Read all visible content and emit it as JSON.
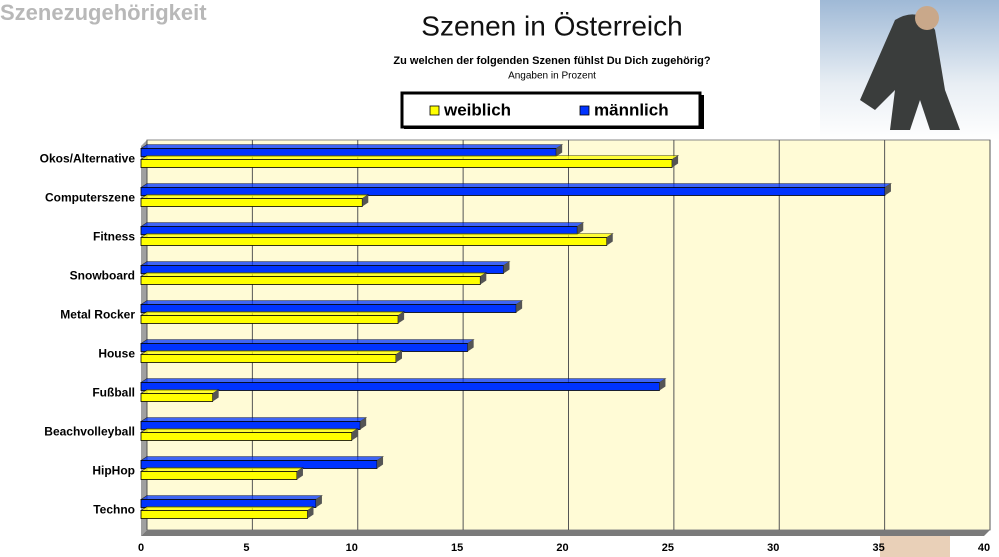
{
  "chart_data": {
    "type": "bar",
    "orientation": "horizontal",
    "section_label": "Szenezugehörigkeit",
    "title": "Szenen in Österreich",
    "subtitle": "Zu welchen der folgenden Szenen fühlst Du Dich zugehörig?",
    "note": "Angaben in Prozent",
    "categories": [
      "Okos/Alternative",
      "Computerszene",
      "Fitness",
      "Snowboard",
      "Metal Rocker",
      "House",
      "Fußball",
      "Beachvolleyball",
      "HipHop",
      "Techno"
    ],
    "series": [
      {
        "name": "weiblich",
        "color": "#ffff00",
        "values": [
          25.2,
          10.5,
          22.1,
          16.1,
          12.2,
          12.1,
          3.4,
          10.0,
          7.4,
          7.9
        ]
      },
      {
        "name": "männlich",
        "color": "#0033ff",
        "values": [
          19.7,
          35.3,
          20.7,
          17.2,
          17.8,
          15.5,
          24.6,
          10.4,
          11.2,
          8.3
        ]
      }
    ],
    "xlim": [
      0,
      40
    ],
    "xticks": [
      0,
      5,
      10,
      15,
      20,
      25,
      30,
      35,
      40
    ],
    "grid": true,
    "legend": "top"
  }
}
